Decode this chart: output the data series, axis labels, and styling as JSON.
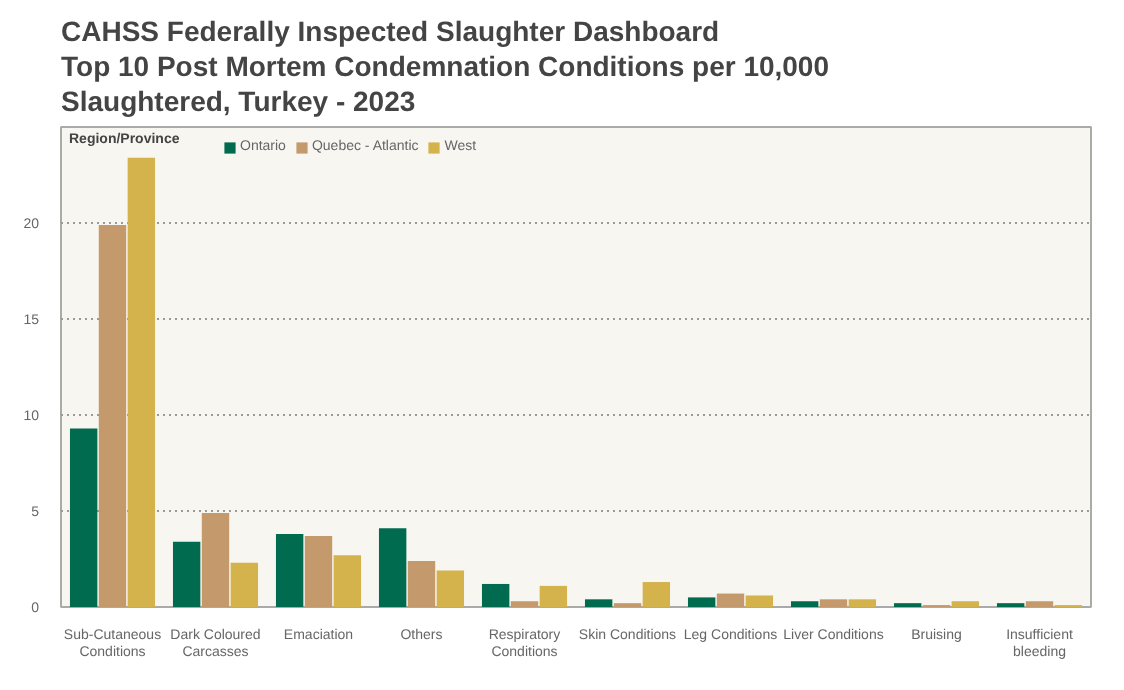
{
  "chart_data": {
    "type": "bar",
    "title": "CAHSS Federally Inspected Slaughter Dashboard\nTop 10 Post Mortem Condemnation Conditions per 10,000\nSlaughtered, Turkey - 2023",
    "legend_title": "Region/Province",
    "categories": [
      "Sub-Cutaneous Conditions",
      "Dark Coloured Carcasses",
      "Emaciation",
      "Others",
      "Respiratory Conditions",
      "Skin Conditions",
      "Leg Conditions",
      "Liver Conditions",
      "Bruising",
      "Insufficient bleeding"
    ],
    "series": [
      {
        "name": "Ontario",
        "color": "#006b4f",
        "values": [
          9.3,
          3.4,
          3.8,
          4.1,
          1.2,
          0.4,
          0.5,
          0.3,
          0.2,
          0.2
        ]
      },
      {
        "name": "Quebec - Atlantic",
        "color": "#c49a6c",
        "values": [
          19.9,
          4.9,
          3.7,
          2.4,
          0.3,
          0.2,
          0.7,
          0.4,
          0.1,
          0.3
        ]
      },
      {
        "name": "West",
        "color": "#d4b24c",
        "values": [
          23.4,
          2.3,
          2.7,
          1.9,
          1.1,
          1.3,
          0.6,
          0.4,
          0.3,
          0.1
        ]
      }
    ],
    "ylim": [
      0,
      25
    ],
    "yticks": [
      0,
      5,
      10,
      15,
      20
    ],
    "grid": "y",
    "legend": "top left"
  }
}
